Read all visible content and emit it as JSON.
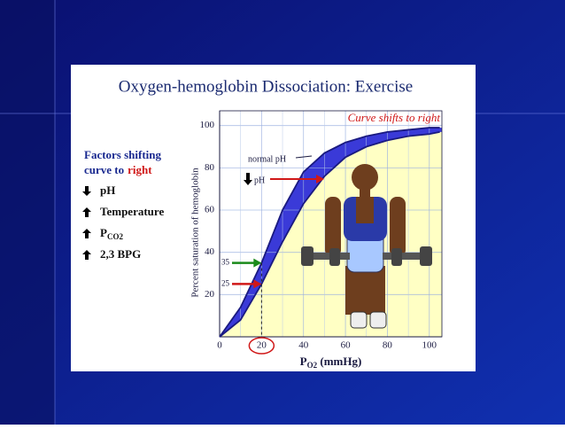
{
  "chart_data": {
    "type": "line",
    "title": "Oxygen-hemoglobin Dissociation: Exercise",
    "annotation": "Curve shifts to right",
    "factors": {
      "heading": "Factors shifting",
      "heading2": "curve to",
      "heading_highlight": "right",
      "items": [
        {
          "direction": "down",
          "text": "pH"
        },
        {
          "direction": "up",
          "text": "Temperature"
        },
        {
          "direction": "up",
          "text": "P",
          "sub": "CO2"
        },
        {
          "direction": "up",
          "text": "2,3 BPG"
        }
      ]
    },
    "ylabel": "Percent saturation of hemoglobin",
    "xlabel": {
      "text": "P",
      "sub": "O2",
      "unit": " (mmHg)"
    },
    "x": [
      0,
      10,
      20,
      30,
      40,
      50,
      60,
      70,
      80,
      90,
      100,
      105
    ],
    "series": [
      {
        "name": "normal pH",
        "color": "#1a1a80",
        "values": [
          0,
          14,
          35,
          60,
          78,
          87,
          92,
          95,
          97,
          98,
          99,
          99
        ]
      },
      {
        "name": "pH",
        "color": "#1a1a80",
        "values": [
          0,
          8,
          25,
          45,
          63,
          76,
          85,
          90,
          93,
          95,
          96,
          97
        ]
      }
    ],
    "markers": [
      35,
      25
    ],
    "marker_colors": [
      "#1a8a1a",
      "#d01818"
    ],
    "xlim": [
      0,
      106
    ],
    "ylim": [
      0,
      107
    ],
    "xticks": [
      0,
      20,
      40,
      60,
      80,
      100
    ],
    "yticks": [
      20,
      40,
      60,
      80,
      100
    ],
    "grid": true
  }
}
